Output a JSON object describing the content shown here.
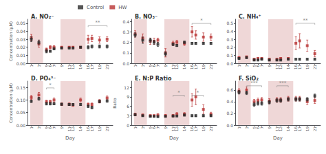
{
  "chart_data": [
    {
      "type": "scatter",
      "title": "A. NO₂⁻",
      "ylabel": "Concentration (μM)",
      "marker": "square",
      "grid": false,
      "legend": "top",
      "x": [
        1,
        3,
        5,
        6,
        7,
        9,
        11,
        12,
        14,
        16,
        17,
        19,
        21
      ],
      "xlim": [
        0.0,
        22.5
      ],
      "xticks": [
        1,
        3,
        5,
        6,
        7,
        9,
        11,
        12,
        14,
        16,
        17,
        19,
        21
      ],
      "ylim": [
        0.0,
        0.055
      ],
      "yticks": [
        {
          "value": 0.0,
          "label": "0.00"
        },
        0.01,
        0.02,
        0.03,
        0.04,
        0.05
      ],
      "shaded_ranges": [
        {
          "x1": 0.7,
          "x2": 4.1
        },
        {
          "x1": 8.7,
          "x2": 15.3
        }
      ],
      "annotations": [
        {
          "x1": 16,
          "x2": 21,
          "y": 0.047,
          "text": "**"
        }
      ],
      "series": [
        {
          "name": "Control",
          "color": "#2b2b2b",
          "values": [
            0.03,
            0.026,
            0.015,
            0.015,
            0.018,
            0.019,
            0.019,
            0.019,
            0.02,
            0.02,
            0.021,
            0.021,
            0.021
          ],
          "errors": [
            0.003,
            0.003,
            0.002,
            0.001,
            0.001,
            0.001,
            0.001,
            0.001,
            0.001,
            0.002,
            0.002,
            0.002,
            0.002
          ]
        },
        {
          "name": "HW",
          "color": "#b83232",
          "values": [
            0.032,
            0.024,
            0.017,
            0.02,
            0.02,
            0.02,
            0.02,
            0.02,
            0.02,
            0.03,
            0.031,
            0.029,
            0.03
          ],
          "errors": [
            0.004,
            0.004,
            0.002,
            0.002,
            0.002,
            0.001,
            0.001,
            0.001,
            0.001,
            0.005,
            0.004,
            0.004,
            0.003
          ]
        }
      ]
    },
    {
      "type": "scatter",
      "title": "B. NO₃⁻",
      "marker": "square",
      "grid": false,
      "x": [
        1,
        3,
        5,
        6,
        7,
        9,
        11,
        12,
        14,
        16,
        17,
        19,
        21
      ],
      "xlim": [
        0.0,
        22.5
      ],
      "xticks": [
        1,
        3,
        5,
        6,
        7,
        9,
        11,
        12,
        14,
        16,
        17,
        19,
        21
      ],
      "ylim": [
        0.0,
        0.42
      ],
      "yticks": [
        {
          "value": 0.0,
          "label": "0.0"
        },
        0.1,
        0.2,
        0.3,
        0.4
      ],
      "shaded_ranges": [
        {
          "x1": 0.7,
          "x2": 4.1
        },
        {
          "x1": 8.7,
          "x2": 15.3
        }
      ],
      "annotations": [
        {
          "x1": 16,
          "x2": 21,
          "y": 0.38,
          "text": "*"
        }
      ],
      "series": [
        {
          "name": "Control",
          "color": "#2b2b2b",
          "values": [
            0.27,
            0.22,
            0.22,
            0.2,
            0.18,
            0.09,
            0.18,
            0.17,
            0.2,
            0.19,
            0.19,
            0.19,
            0.19
          ],
          "errors": [
            0.02,
            0.03,
            0.02,
            0.02,
            0.02,
            0.02,
            0.01,
            0.01,
            0.01,
            0.01,
            0.01,
            0.01,
            0.01
          ]
        },
        {
          "name": "HW",
          "color": "#b83232",
          "values": [
            0.28,
            0.24,
            0.21,
            0.21,
            0.22,
            0.1,
            0.19,
            0.2,
            0.19,
            0.3,
            0.27,
            0.25,
            0.25
          ],
          "errors": [
            0.03,
            0.04,
            0.03,
            0.03,
            0.02,
            0.04,
            0.02,
            0.02,
            0.02,
            0.05,
            0.04,
            0.04,
            0.03
          ]
        }
      ]
    },
    {
      "type": "scatter",
      "title": "C. NH₄⁺",
      "marker": "square",
      "grid": false,
      "x": [
        1,
        3,
        5,
        6,
        7,
        9,
        11,
        12,
        14,
        16,
        17,
        19,
        21
      ],
      "xlim": [
        0.0,
        22.5
      ],
      "xticks": [
        1,
        3,
        5,
        6,
        7,
        9,
        11,
        12,
        14,
        16,
        17,
        19,
        21
      ],
      "ylim": [
        0.0,
        0.55
      ],
      "yticks": [
        {
          "value": 0.0,
          "label": "0.0"
        },
        0.1,
        0.2,
        0.3,
        0.4,
        0.5
      ],
      "shaded_ranges": [
        {
          "x1": 0.7,
          "x2": 4.1
        },
        {
          "x1": 8.7,
          "x2": 15.3
        }
      ],
      "annotations": [
        {
          "x1": 16,
          "x2": 21,
          "y": 0.5,
          "text": "**"
        }
      ],
      "series": [
        {
          "name": "Control",
          "color": "#2b2b2b",
          "values": [
            0.06,
            0.07,
            0.04,
            0.04,
            0.05,
            0.04,
            0.04,
            0.04,
            0.05,
            0.05,
            0.05,
            0.05,
            0.05
          ],
          "errors": [
            0.01,
            0.01,
            0.01,
            0.01,
            0.01,
            0.01,
            0.01,
            0.01,
            0.01,
            0.01,
            0.01,
            0.01,
            0.01
          ]
        },
        {
          "name": "HW",
          "color": "#b83232",
          "values": [
            0.07,
            0.08,
            0.05,
            0.06,
            0.06,
            0.05,
            0.05,
            0.06,
            0.06,
            0.25,
            0.28,
            0.22,
            0.12
          ],
          "errors": [
            0.01,
            0.01,
            0.01,
            0.01,
            0.01,
            0.01,
            0.01,
            0.01,
            0.01,
            0.08,
            0.09,
            0.07,
            0.04
          ]
        }
      ]
    },
    {
      "type": "scatter",
      "title": "D. PO₄³⁻",
      "xlabel": "Day",
      "ylabel": "Concentration (μM)",
      "marker": "square",
      "grid": false,
      "x": [
        1,
        3,
        5,
        6,
        7,
        9,
        11,
        12,
        14,
        16,
        17,
        19,
        21
      ],
      "xlim": [
        0.0,
        22.5
      ],
      "xticks": [
        1,
        3,
        5,
        6,
        7,
        9,
        11,
        12,
        14,
        16,
        17,
        19,
        21
      ],
      "ylim": [
        0.0,
        0.175
      ],
      "yticks": [
        {
          "value": 0.0,
          "label": "0.00"
        },
        0.05,
        {
          "value": 0.1,
          "label": "0.10"
        },
        0.15
      ],
      "shaded_ranges": [
        {
          "x1": 0.7,
          "x2": 4.1
        },
        {
          "x1": 8.7,
          "x2": 15.3
        }
      ],
      "annotations": [
        {
          "x1": 5,
          "x2": 7,
          "y": 0.148,
          "text": "*"
        }
      ],
      "series": [
        {
          "name": "Control",
          "color": "#2b2b2b",
          "values": [
            0.095,
            0.105,
            0.085,
            0.085,
            0.085,
            0.083,
            0.082,
            0.082,
            0.082,
            0.075,
            0.07,
            0.094,
            0.096
          ],
          "errors": [
            0.005,
            0.006,
            0.005,
            0.005,
            0.004,
            0.004,
            0.004,
            0.004,
            0.004,
            0.005,
            0.005,
            0.005,
            0.005
          ]
        },
        {
          "name": "HW",
          "color": "#b83232",
          "values": [
            0.11,
            0.12,
            0.093,
            0.093,
            0.1,
            0.083,
            0.083,
            0.08,
            0.1,
            0.082,
            0.082,
            0.095,
            0.108
          ],
          "errors": [
            0.008,
            0.01,
            0.006,
            0.006,
            0.008,
            0.005,
            0.005,
            0.005,
            0.008,
            0.006,
            0.006,
            0.007,
            0.008
          ]
        }
      ]
    },
    {
      "type": "scatter",
      "title": "E. N:P Ratio",
      "xlabel": "Day",
      "ylabel": "Ratio",
      "marker": "square",
      "grid": false,
      "x": [
        1,
        3,
        5,
        6,
        7,
        9,
        11,
        12,
        14,
        16,
        17,
        19,
        21
      ],
      "xlim": [
        0.0,
        22.5
      ],
      "xticks": [
        1,
        3,
        5,
        6,
        7,
        9,
        11,
        12,
        14,
        16,
        17,
        19,
        21
      ],
      "ylim": [
        0,
        14
      ],
      "yticks": [
        0,
        3,
        6,
        9,
        12
      ],
      "shaded_ranges": [
        {
          "x1": 0.7,
          "x2": 4.1
        },
        {
          "x1": 8.7,
          "x2": 15.3
        }
      ],
      "annotations": [
        {
          "x1": 11,
          "x2": 14,
          "y": 9.5,
          "text": "*"
        },
        {
          "x1": 16,
          "x2": 19,
          "y": 9.5,
          "text": "*"
        }
      ],
      "series": [
        {
          "name": "Control",
          "color": "#2b2b2b",
          "values": [
            3.3,
            3.0,
            2.8,
            2.8,
            2.7,
            2.8,
            2.9,
            2.9,
            3.2,
            3.0,
            3.0,
            3.0,
            3.0
          ],
          "errors": [
            0.3,
            0.2,
            0.2,
            0.2,
            0.2,
            0.2,
            0.2,
            0.2,
            0.3,
            0.3,
            0.3,
            0.3,
            0.3
          ]
        },
        {
          "name": "HW",
          "color": "#b83232",
          "values": [
            3.4,
            3.2,
            3.0,
            3.0,
            3.2,
            3.0,
            3.0,
            3.5,
            3.5,
            8.0,
            9.0,
            5.0,
            3.5
          ],
          "errors": [
            0.4,
            0.3,
            0.3,
            0.3,
            0.4,
            0.4,
            0.4,
            0.5,
            0.5,
            2.0,
            2.5,
            1.5,
            0.6
          ]
        }
      ]
    },
    {
      "type": "scatter",
      "title": "F. SiO₂",
      "xlabel": "Day",
      "marker": "square",
      "grid": false,
      "x": [
        1,
        3,
        5,
        6,
        7,
        9,
        11,
        12,
        14,
        16,
        17,
        19,
        21
      ],
      "xlim": [
        0.0,
        22.5
      ],
      "xticks": [
        1,
        3,
        5,
        6,
        7,
        9,
        11,
        12,
        14,
        16,
        17,
        19,
        21
      ],
      "ylim": [
        0.0,
        0.75
      ],
      "yticks": [
        {
          "value": 0.0,
          "label": "0.0"
        },
        0.2,
        0.4,
        0.6
      ],
      "shaded_ranges": [
        {
          "x1": 0.7,
          "x2": 4.1
        },
        {
          "x1": 8.7,
          "x2": 15.3
        }
      ],
      "annotations": [
        {
          "x1": 3,
          "x2": 7,
          "y": 0.67,
          "text": "***"
        },
        {
          "x1": 11,
          "x2": 14,
          "y": 0.67,
          "text": "***"
        }
      ],
      "series": [
        {
          "name": "Control",
          "color": "#2b2b2b",
          "values": [
            0.56,
            0.55,
            0.35,
            0.37,
            0.37,
            0.39,
            0.42,
            0.42,
            0.44,
            0.44,
            0.44,
            0.44,
            0.5
          ],
          "errors": [
            0.03,
            0.03,
            0.03,
            0.03,
            0.03,
            0.03,
            0.03,
            0.03,
            0.03,
            0.03,
            0.03,
            0.03,
            0.03
          ]
        },
        {
          "name": "HW",
          "color": "#b83232",
          "values": [
            0.58,
            0.6,
            0.4,
            0.42,
            0.43,
            0.41,
            0.43,
            0.43,
            0.45,
            0.45,
            0.45,
            0.4,
            0.42
          ],
          "errors": [
            0.04,
            0.05,
            0.04,
            0.04,
            0.04,
            0.04,
            0.04,
            0.04,
            0.04,
            0.04,
            0.04,
            0.05,
            0.05
          ]
        }
      ]
    }
  ]
}
